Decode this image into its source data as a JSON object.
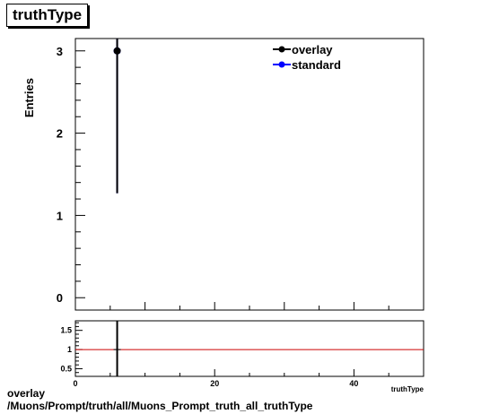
{
  "title": "truthType",
  "footer": {
    "line1": "overlay",
    "line2": "/Muons/Prompt/truth/all/Muons_Prompt_truth_all_truthType"
  },
  "colors": {
    "overlay": "#000000",
    "standard": "#0000ff",
    "ratio_line": "#cc0000"
  },
  "chart_data": [
    {
      "type": "scatter",
      "ylabel": "Entries",
      "xlim": [
        0,
        50
      ],
      "ylim": [
        -0.15,
        3.15
      ],
      "yticks": [
        "0",
        "1",
        "2",
        "3"
      ],
      "legend": {
        "placement": "top-right",
        "entries": [
          "overlay",
          "standard"
        ]
      },
      "series": [
        {
          "name": "overlay",
          "color": "#000000",
          "points": [
            {
              "x": 6,
              "y": 3,
              "err": 1.73
            }
          ]
        },
        {
          "name": "standard",
          "color": "#0000ff",
          "points": [
            {
              "x": 6,
              "y": 3,
              "err": 1.73
            }
          ]
        }
      ]
    },
    {
      "type": "scatter",
      "xlabel": "truthType",
      "xlim": [
        0,
        50
      ],
      "ylim": [
        0.3,
        1.75
      ],
      "yticks": [
        "0.5",
        "1",
        "1.5"
      ],
      "xticks": [
        "0",
        "20",
        "40"
      ],
      "reference_line": 1,
      "points": [
        {
          "x": 6,
          "y": 1,
          "err": 1.0
        }
      ]
    }
  ]
}
